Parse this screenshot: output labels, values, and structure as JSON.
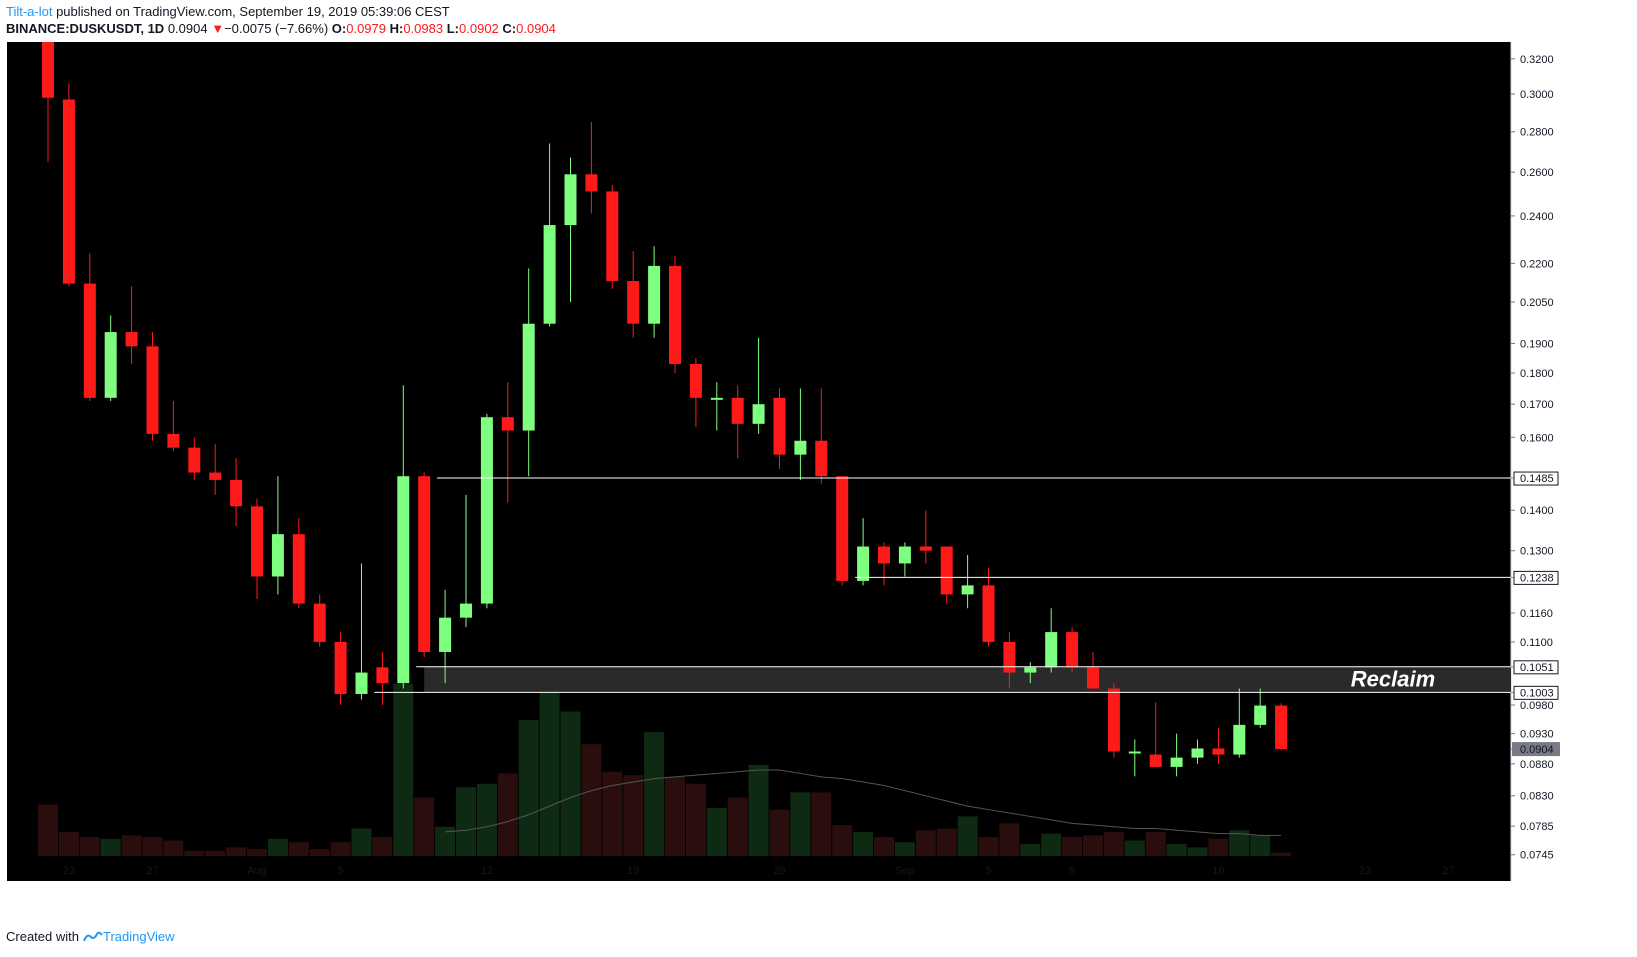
{
  "header": {
    "author": "Tilt-a-lot",
    "published_text": " published on TradingView.com, September 19, 2019 05:39:06 CEST",
    "symbol": "BINANCE:DUSKUSDT",
    "interval": ", 1D",
    "last": "0.0904",
    "change_arrow": "▼",
    "change": "−0.0075 (−7.66%)",
    "o_label": "O:",
    "o": "0.0979",
    "h_label": "H:",
    "h": "0.0983",
    "l_label": "L:",
    "l": "0.0902",
    "c_label": "C:",
    "c": "0.0904"
  },
  "footer": {
    "created_with": "Created with",
    "brand": "TradingView"
  },
  "colors": {
    "background": "#000000",
    "up": "#7fff7f",
    "down": "#ff1a1a",
    "vol_up": "#0f2a12",
    "vol_down": "#2a0d0d",
    "level": "#ffffff",
    "zone": "#2a2a2a"
  },
  "chart_data": {
    "type": "candlestick",
    "scale": "log",
    "ylim": [
      0.071,
      0.33
    ],
    "y_ticks": [
      "0.3200",
      "0.3000",
      "0.2800",
      "0.2600",
      "0.2400",
      "0.2200",
      "0.2050",
      "0.1900",
      "0.1800",
      "0.1700",
      "0.1600",
      "0.1485",
      "0.1400",
      "0.1300",
      "0.1238",
      "0.1160",
      "0.1100",
      "0.1051",
      "0.1003",
      "0.0980",
      "0.0930",
      "0.0904",
      "0.0880",
      "0.0830",
      "0.0785",
      "0.0745"
    ],
    "x_ticks": [
      {
        "label": "23",
        "index": 1
      },
      {
        "label": "27",
        "index": 5
      },
      {
        "label": "Aug",
        "index": 10
      },
      {
        "label": "5",
        "index": 14
      },
      {
        "label": "12",
        "index": 21
      },
      {
        "label": "19",
        "index": 28
      },
      {
        "label": "26",
        "index": 35
      },
      {
        "label": "Sep",
        "index": 41
      },
      {
        "label": "5",
        "index": 45
      },
      {
        "label": "9",
        "index": 49
      },
      {
        "label": "16",
        "index": 56
      },
      {
        "label": "23",
        "index": 63
      },
      {
        "label": "27",
        "index": 67
      }
    ],
    "x_count": 72,
    "last_price_label": "0.0904",
    "levels": [
      {
        "label": "0.1485",
        "value": 0.1485,
        "start_index": 19
      },
      {
        "label": "0.1238",
        "value": 0.1238,
        "start_index": 39
      },
      {
        "label": "0.1051",
        "value": 0.1051,
        "start_index": 18
      },
      {
        "label": "0.1003",
        "value": 0.1003,
        "start_index": 16
      }
    ],
    "zone": {
      "low": 0.1003,
      "high": 0.1051,
      "start_index": 18,
      "label": "Reclaim"
    },
    "candles": [
      {
        "o": 0.34,
        "h": 0.35,
        "l": 0.265,
        "c": 0.298,
        "v": 30
      },
      {
        "o": 0.297,
        "h": 0.306,
        "l": 0.211,
        "c": 0.212,
        "v": 14
      },
      {
        "o": 0.212,
        "h": 0.224,
        "l": 0.171,
        "c": 0.172,
        "v": 11
      },
      {
        "o": 0.172,
        "h": 0.2,
        "l": 0.171,
        "c": 0.194,
        "v": 10
      },
      {
        "o": 0.194,
        "h": 0.211,
        "l": 0.183,
        "c": 0.189,
        "v": 12
      },
      {
        "o": 0.189,
        "h": 0.194,
        "l": 0.159,
        "c": 0.161,
        "v": 11
      },
      {
        "o": 0.161,
        "h": 0.171,
        "l": 0.156,
        "c": 0.157,
        "v": 9
      },
      {
        "o": 0.157,
        "h": 0.16,
        "l": 0.148,
        "c": 0.15,
        "v": 3
      },
      {
        "o": 0.15,
        "h": 0.158,
        "l": 0.144,
        "c": 0.148,
        "v": 3
      },
      {
        "o": 0.148,
        "h": 0.154,
        "l": 0.136,
        "c": 0.141,
        "v": 5
      },
      {
        "o": 0.141,
        "h": 0.143,
        "l": 0.119,
        "c": 0.124,
        "v": 4
      },
      {
        "o": 0.124,
        "h": 0.149,
        "l": 0.12,
        "c": 0.134,
        "v": 10
      },
      {
        "o": 0.134,
        "h": 0.138,
        "l": 0.117,
        "c": 0.118,
        "v": 8
      },
      {
        "o": 0.118,
        "h": 0.12,
        "l": 0.109,
        "c": 0.11,
        "v": 4
      },
      {
        "o": 0.11,
        "h": 0.112,
        "l": 0.098,
        "c": 0.1,
        "v": 8
      },
      {
        "o": 0.1,
        "h": 0.127,
        "l": 0.099,
        "c": 0.104,
        "v": 16
      },
      {
        "o": 0.105,
        "h": 0.108,
        "l": 0.098,
        "c": 0.102,
        "v": 11
      },
      {
        "o": 0.102,
        "h": 0.176,
        "l": 0.101,
        "c": 0.149,
        "v": 100
      },
      {
        "o": 0.149,
        "h": 0.15,
        "l": 0.107,
        "c": 0.108,
        "v": 34
      },
      {
        "o": 0.108,
        "h": 0.121,
        "l": 0.102,
        "c": 0.115,
        "v": 17
      },
      {
        "o": 0.115,
        "h": 0.144,
        "l": 0.113,
        "c": 0.118,
        "v": 40
      },
      {
        "o": 0.118,
        "h": 0.167,
        "l": 0.117,
        "c": 0.166,
        "v": 42
      },
      {
        "o": 0.166,
        "h": 0.177,
        "l": 0.142,
        "c": 0.162,
        "v": 48
      },
      {
        "o": 0.162,
        "h": 0.218,
        "l": 0.149,
        "c": 0.197,
        "v": 79
      },
      {
        "o": 0.197,
        "h": 0.274,
        "l": 0.196,
        "c": 0.236,
        "v": 100
      },
      {
        "o": 0.236,
        "h": 0.267,
        "l": 0.205,
        "c": 0.259,
        "v": 84
      },
      {
        "o": 0.259,
        "h": 0.285,
        "l": 0.241,
        "c": 0.251,
        "v": 65
      },
      {
        "o": 0.251,
        "h": 0.254,
        "l": 0.21,
        "c": 0.213,
        "v": 49
      },
      {
        "o": 0.213,
        "h": 0.225,
        "l": 0.192,
        "c": 0.197,
        "v": 47
      },
      {
        "o": 0.197,
        "h": 0.227,
        "l": 0.192,
        "c": 0.219,
        "v": 72
      },
      {
        "o": 0.219,
        "h": 0.223,
        "l": 0.18,
        "c": 0.183,
        "v": 46
      },
      {
        "o": 0.183,
        "h": 0.185,
        "l": 0.163,
        "c": 0.172,
        "v": 42
      },
      {
        "o": 0.172,
        "h": 0.177,
        "l": 0.162,
        "c": 0.172,
        "v": 28
      },
      {
        "o": 0.172,
        "h": 0.176,
        "l": 0.154,
        "c": 0.164,
        "v": 34
      },
      {
        "o": 0.164,
        "h": 0.192,
        "l": 0.161,
        "c": 0.17,
        "v": 53
      },
      {
        "o": 0.172,
        "h": 0.175,
        "l": 0.151,
        "c": 0.155,
        "v": 27
      },
      {
        "o": 0.155,
        "h": 0.175,
        "l": 0.148,
        "c": 0.159,
        "v": 37
      },
      {
        "o": 0.159,
        "h": 0.175,
        "l": 0.147,
        "c": 0.149,
        "v": 37
      },
      {
        "o": 0.149,
        "h": 0.149,
        "l": 0.122,
        "c": 0.123,
        "v": 18
      },
      {
        "o": 0.123,
        "h": 0.138,
        "l": 0.122,
        "c": 0.131,
        "v": 14
      },
      {
        "o": 0.131,
        "h": 0.132,
        "l": 0.122,
        "c": 0.127,
        "v": 11
      },
      {
        "o": 0.127,
        "h": 0.132,
        "l": 0.124,
        "c": 0.131,
        "v": 8
      },
      {
        "o": 0.131,
        "h": 0.14,
        "l": 0.127,
        "c": 0.13,
        "v": 15
      },
      {
        "o": 0.131,
        "h": 0.131,
        "l": 0.118,
        "c": 0.12,
        "v": 16
      },
      {
        "o": 0.12,
        "h": 0.129,
        "l": 0.117,
        "c": 0.122,
        "v": 23
      },
      {
        "o": 0.122,
        "h": 0.126,
        "l": 0.109,
        "c": 0.11,
        "v": 11
      },
      {
        "o": 0.11,
        "h": 0.112,
        "l": 0.101,
        "c": 0.104,
        "v": 19
      },
      {
        "o": 0.104,
        "h": 0.106,
        "l": 0.102,
        "c": 0.105,
        "v": 7
      },
      {
        "o": 0.105,
        "h": 0.117,
        "l": 0.104,
        "c": 0.112,
        "v": 13
      },
      {
        "o": 0.112,
        "h": 0.113,
        "l": 0.104,
        "c": 0.105,
        "v": 11
      },
      {
        "o": 0.105,
        "h": 0.108,
        "l": 0.101,
        "c": 0.101,
        "v": 12
      },
      {
        "o": 0.101,
        "h": 0.102,
        "l": 0.089,
        "c": 0.09,
        "v": 14
      },
      {
        "o": 0.09,
        "h": 0.092,
        "l": 0.086,
        "c": 0.09,
        "v": 9
      },
      {
        "o": 0.0895,
        "h": 0.0985,
        "l": 0.0875,
        "c": 0.0875,
        "v": 14
      },
      {
        "o": 0.0875,
        "h": 0.093,
        "l": 0.086,
        "c": 0.089,
        "v": 7
      },
      {
        "o": 0.089,
        "h": 0.092,
        "l": 0.088,
        "c": 0.0905,
        "v": 5
      },
      {
        "o": 0.0905,
        "h": 0.094,
        "l": 0.088,
        "c": 0.0895,
        "v": 10
      },
      {
        "o": 0.0895,
        "h": 0.101,
        "l": 0.089,
        "c": 0.0945,
        "v": 15
      },
      {
        "o": 0.0945,
        "h": 0.101,
        "l": 0.094,
        "c": 0.0979,
        "v": 12
      },
      {
        "o": 0.0979,
        "h": 0.0983,
        "l": 0.0902,
        "c": 0.0904,
        "v": 2
      }
    ],
    "volume_ma": [
      null,
      null,
      null,
      null,
      null,
      null,
      null,
      null,
      null,
      null,
      null,
      null,
      null,
      null,
      null,
      null,
      null,
      null,
      null,
      14,
      15,
      17,
      20,
      24,
      29,
      34,
      38,
      41,
      43,
      45,
      46,
      47,
      48,
      49,
      50,
      50,
      48,
      46,
      45,
      43,
      41,
      38,
      35,
      32,
      29,
      27,
      25,
      23,
      21,
      19,
      18,
      17,
      16,
      16,
      15,
      14,
      13,
      13,
      12,
      12
    ]
  }
}
